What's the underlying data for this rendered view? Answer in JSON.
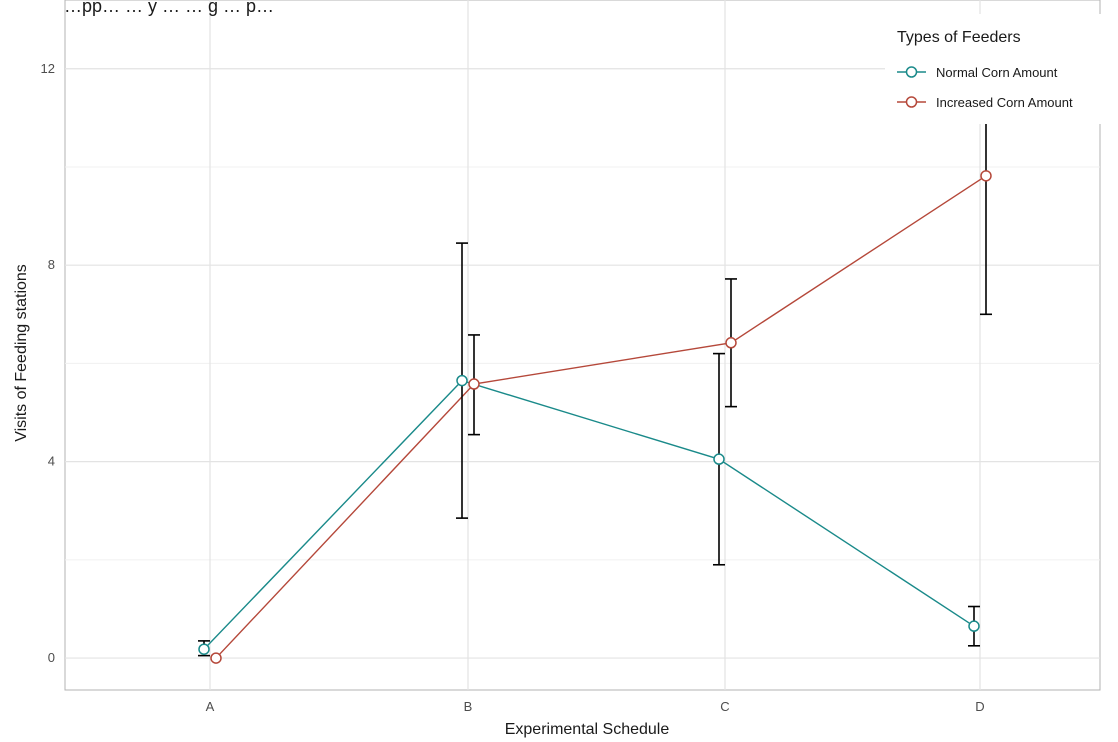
{
  "chart_data": {
    "type": "line",
    "title": "…pp… … y … … g … p…",
    "xlabel": "Experimental Schedule",
    "ylabel": "Visits of Feeding stations",
    "categories": [
      "A",
      "B",
      "C",
      "D"
    ],
    "yticks": [
      0,
      4,
      8,
      12
    ],
    "ylim": [
      -0.65,
      13.4
    ],
    "grid": true,
    "legend": {
      "title": "Types of Feeders",
      "placement": "top-right"
    },
    "series": [
      {
        "name": "Normal Corn Amount",
        "color": "#1a8a8a",
        "values": [
          0.18,
          5.65,
          4.05,
          0.65
        ],
        "error_low": [
          0.05,
          2.85,
          1.9,
          0.25
        ],
        "error_high": [
          0.35,
          8.45,
          6.2,
          1.05
        ]
      },
      {
        "name": "Increased Corn Amount",
        "color": "#b5483a",
        "values": [
          0.0,
          5.58,
          6.42,
          9.82
        ],
        "error_low": [
          0.0,
          4.55,
          5.12,
          7.0
        ],
        "error_high": [
          0.0,
          6.58,
          7.72,
          11.05
        ]
      }
    ]
  }
}
